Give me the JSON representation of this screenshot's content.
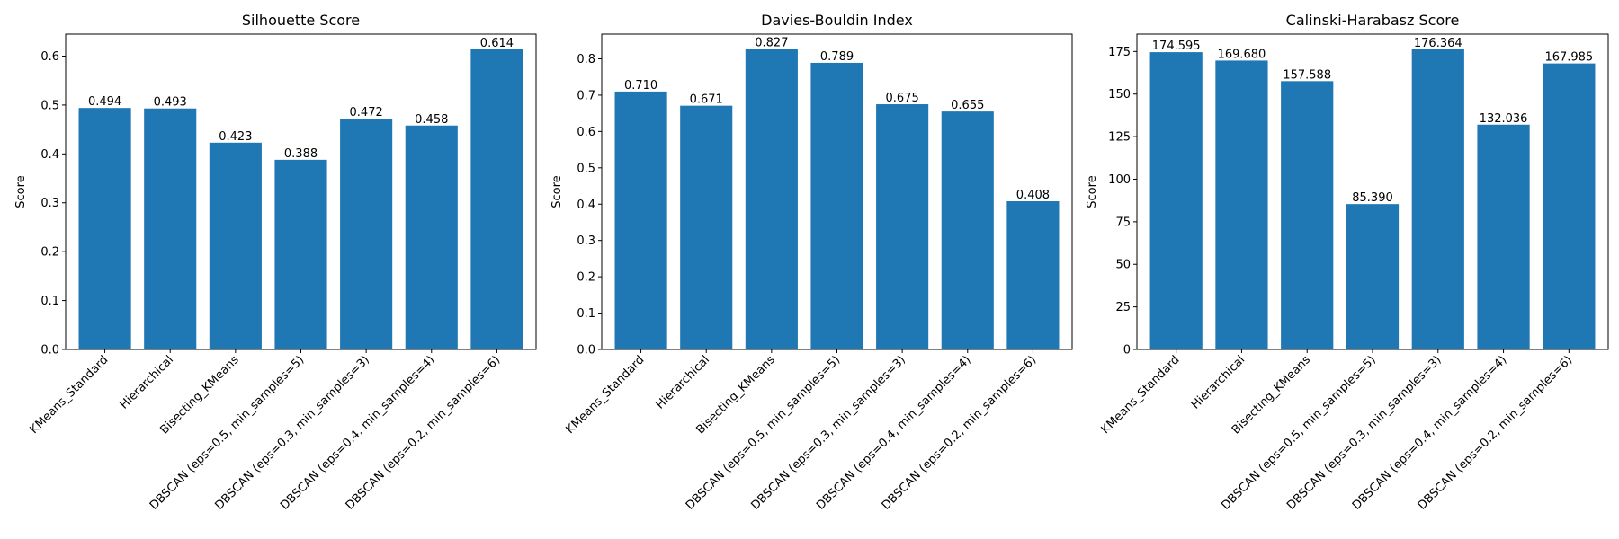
{
  "chart_data": [
    {
      "type": "bar",
      "title": "Silhouette Score",
      "xlabel": "",
      "ylabel": "Score",
      "ylim": [
        0,
        0.645
      ],
      "yticks": [
        "0.0",
        "0.1",
        "0.2",
        "0.3",
        "0.4",
        "0.5",
        "0.6"
      ],
      "categories": [
        "KMeans_Standard",
        "Hierarchical",
        "Bisecting_KMeans",
        "DBSCAN (eps=0.5, min_samples=5)",
        "DBSCAN (eps=0.3, min_samples=3)",
        "DBSCAN (eps=0.4, min_samples=4)",
        "DBSCAN (eps=0.2, min_samples=6)"
      ],
      "values": [
        0.494,
        0.493,
        0.423,
        0.388,
        0.472,
        0.458,
        0.614
      ],
      "labels": [
        "0.494",
        "0.493",
        "0.423",
        "0.388",
        "0.472",
        "0.458",
        "0.614"
      ],
      "grid": false,
      "color": "#1f77b4"
    },
    {
      "type": "bar",
      "title": "Davies-Bouldin Index",
      "xlabel": "",
      "ylabel": "Score",
      "ylim": [
        0,
        0.868
      ],
      "yticks": [
        "0.0",
        "0.1",
        "0.2",
        "0.3",
        "0.4",
        "0.5",
        "0.6",
        "0.7",
        "0.8"
      ],
      "categories": [
        "KMeans_Standard",
        "Hierarchical",
        "Bisecting_KMeans",
        "DBSCAN (eps=0.5, min_samples=5)",
        "DBSCAN (eps=0.3, min_samples=3)",
        "DBSCAN (eps=0.4, min_samples=4)",
        "DBSCAN (eps=0.2, min_samples=6)"
      ],
      "values": [
        0.71,
        0.671,
        0.827,
        0.789,
        0.675,
        0.655,
        0.408
      ],
      "labels": [
        "0.710",
        "0.671",
        "0.827",
        "0.789",
        "0.675",
        "0.655",
        "0.408"
      ],
      "grid": false,
      "color": "#1f77b4"
    },
    {
      "type": "bar",
      "title": "Calinski-Harabasz Score",
      "xlabel": "",
      "ylabel": "Score",
      "ylim": [
        0,
        185.2
      ],
      "yticks": [
        "0",
        "25",
        "50",
        "75",
        "100",
        "125",
        "150",
        "175"
      ],
      "categories": [
        "KMeans_Standard",
        "Hierarchical",
        "Bisecting_KMeans",
        "DBSCAN (eps=0.5, min_samples=5)",
        "DBSCAN (eps=0.3, min_samples=3)",
        "DBSCAN (eps=0.4, min_samples=4)",
        "DBSCAN (eps=0.2, min_samples=6)"
      ],
      "values": [
        174.595,
        169.68,
        157.588,
        85.39,
        176.364,
        132.036,
        167.985
      ],
      "labels": [
        "174.595",
        "169.680",
        "157.588",
        "85.390",
        "176.364",
        "132.036",
        "167.985"
      ],
      "grid": false,
      "color": "#1f77b4"
    }
  ]
}
